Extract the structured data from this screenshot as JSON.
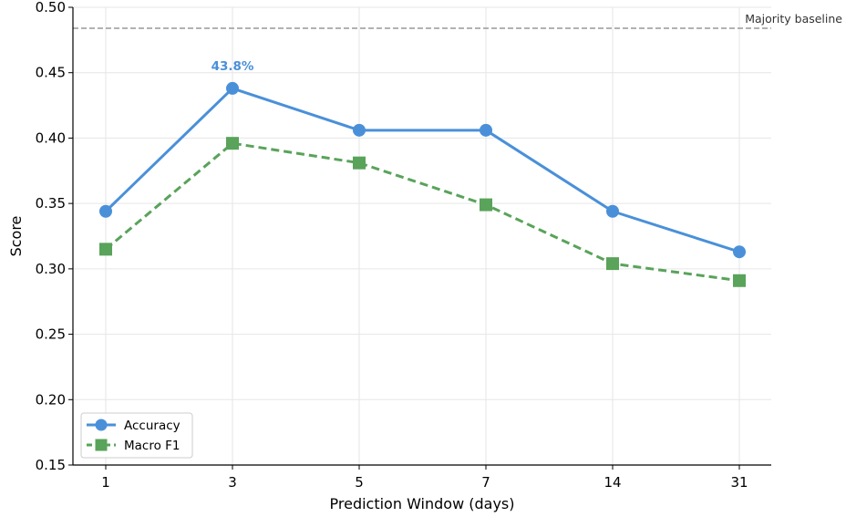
{
  "chart_data": {
    "type": "line",
    "categories": [
      "1",
      "3",
      "5",
      "7",
      "14",
      "31"
    ],
    "series": [
      {
        "name": "Accuracy",
        "values": [
          0.344,
          0.438,
          0.406,
          0.406,
          0.344,
          0.313
        ],
        "color": "#4a90d9",
        "marker": "circle",
        "line_style": "solid"
      },
      {
        "name": "Macro F1",
        "values": [
          0.315,
          0.396,
          0.381,
          0.349,
          0.304,
          0.291
        ],
        "color": "#59a35a",
        "marker": "square",
        "line_style": "dashed"
      }
    ],
    "xlabel": "Prediction Window (days)",
    "ylabel": "Score",
    "ylim": [
      0.15,
      0.5
    ],
    "yticks": [
      "0.15",
      "0.20",
      "0.25",
      "0.30",
      "0.35",
      "0.40",
      "0.45",
      "0.50"
    ],
    "grid": true,
    "legend_position": "lower-left",
    "reference_line": {
      "label": "Majority baseline",
      "value": 0.484,
      "color": "#999999"
    },
    "annotation": {
      "text": "43.8%",
      "category": "3",
      "series": "Accuracy",
      "color": "#4a90d9"
    }
  }
}
